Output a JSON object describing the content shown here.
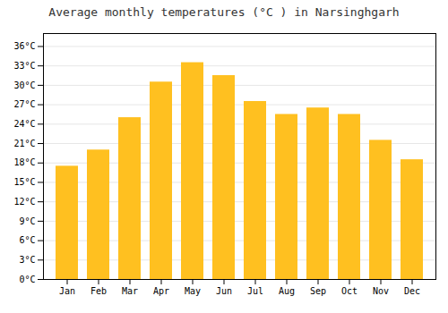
{
  "chart_data": {
    "type": "bar",
    "title": "Average monthly temperatures (°C ) in Narsinghgarh",
    "categories": [
      "Jan",
      "Feb",
      "Mar",
      "Apr",
      "May",
      "Jun",
      "Jul",
      "Aug",
      "Sep",
      "Oct",
      "Nov",
      "Dec"
    ],
    "values": [
      17.5,
      20.0,
      25.0,
      30.5,
      33.5,
      31.5,
      27.5,
      25.5,
      26.5,
      25.5,
      21.5,
      18.5
    ],
    "color": "#FFC020",
    "ylim": [
      0,
      38
    ],
    "yticks": [
      {
        "value": 0,
        "label": "0°C"
      },
      {
        "value": 3,
        "label": "3°C"
      },
      {
        "value": 6,
        "label": "6°C"
      },
      {
        "value": 9,
        "label": "9°C"
      },
      {
        "value": 12,
        "label": "12°C"
      },
      {
        "value": 15,
        "label": "15°C"
      },
      {
        "value": 18,
        "label": "18°C"
      },
      {
        "value": 21,
        "label": "21°C"
      },
      {
        "value": 24,
        "label": "24°C"
      },
      {
        "value": 27,
        "label": "27°C"
      },
      {
        "value": 30,
        "label": "30°C"
      },
      {
        "value": 33,
        "label": "33°C"
      },
      {
        "value": 36,
        "label": "36°C"
      }
    ],
    "grid": true
  }
}
